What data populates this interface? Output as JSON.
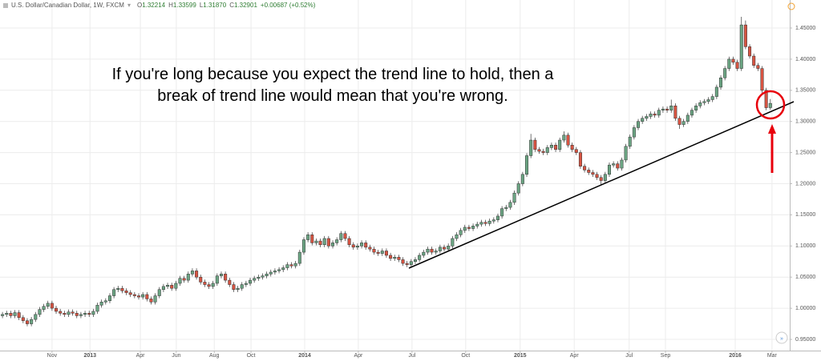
{
  "chart_data": {
    "type": "candlestick",
    "title": "U.S. Dollar/Canadian Dollar, 1W, FXCM",
    "ohlc_header": [
      {
        "label": "O",
        "value": "1.32214"
      },
      {
        "label": "H",
        "value": "1.33599"
      },
      {
        "label": "L",
        "value": "1.31870"
      },
      {
        "label": "C",
        "value": "1.32901"
      }
    ],
    "change": "+0.00687 (+0.52%)",
    "annotation": [
      "If you're long because you expect the trend line to hold, then a",
      "break of trend line would mean that you're wrong."
    ],
    "up_color": "#6ba583",
    "down_color": "#d75442",
    "grid": true,
    "xlim": [
      -0.6,
      190.7
    ],
    "xticks": [
      {
        "value": 12.0,
        "label": "Nov"
      },
      {
        "value": 21.2,
        "label": "2013"
      },
      {
        "value": 33.4,
        "label": "Apr"
      },
      {
        "value": 42.1,
        "label": "Jun"
      },
      {
        "value": 51.3,
        "label": "Aug"
      },
      {
        "value": 60.2,
        "label": "Oct"
      },
      {
        "value": 73.2,
        "label": "2014"
      },
      {
        "value": 86.2,
        "label": "Apr"
      },
      {
        "value": 99.2,
        "label": "Jul"
      },
      {
        "value": 112.2,
        "label": "Oct"
      },
      {
        "value": 125.4,
        "label": "2015"
      },
      {
        "value": 138.5,
        "label": "Apr"
      },
      {
        "value": 151.8,
        "label": "Jul"
      },
      {
        "value": 160.6,
        "label": "Sep"
      },
      {
        "value": 177.5,
        "label": "2016"
      },
      {
        "value": 186.4,
        "label": "Mar"
      }
    ],
    "ylim": [
      0.932,
      1.495
    ],
    "yticks": [
      {
        "value": 0.95,
        "label": "0.95000"
      },
      {
        "value": 1.0,
        "label": "1.00000"
      },
      {
        "value": 1.05,
        "label": "1.05000"
      },
      {
        "value": 1.1,
        "label": "1.10000"
      },
      {
        "value": 1.15,
        "label": "1.15000"
      },
      {
        "value": 1.2,
        "label": "1.20000"
      },
      {
        "value": 1.25,
        "label": "1.25000"
      },
      {
        "value": 1.3,
        "label": "1.30000"
      },
      {
        "value": 1.35,
        "label": "1.35000"
      },
      {
        "value": 1.4,
        "label": "1.40000"
      },
      {
        "value": 1.45,
        "label": "1.45000"
      }
    ],
    "open": [
      0.988,
      0.99,
      0.992,
      0.988,
      0.993,
      0.985,
      0.98,
      0.975,
      0.982,
      0.99,
      0.998,
      1.003,
      1.008,
      1.0,
      0.995,
      0.992,
      0.99,
      0.994,
      0.992,
      0.988,
      0.99,
      0.992,
      0.99,
      0.995,
      1.005,
      1.01,
      1.012,
      1.02,
      1.03,
      1.032,
      1.028,
      1.025,
      1.022,
      1.02,
      1.018,
      1.022,
      1.015,
      1.01,
      1.02,
      1.03,
      1.035,
      1.037,
      1.032,
      1.04,
      1.048,
      1.045,
      1.055,
      1.06,
      1.05,
      1.042,
      1.038,
      1.035,
      1.04,
      1.052,
      1.055,
      1.045,
      1.038,
      1.03,
      1.032,
      1.038,
      1.04,
      1.045,
      1.048,
      1.05,
      1.052,
      1.055,
      1.058,
      1.06,
      1.062,
      1.065,
      1.07,
      1.068,
      1.072,
      1.09,
      1.11,
      1.118,
      1.105,
      1.108,
      1.102,
      1.112,
      1.1,
      1.105,
      1.11,
      1.12,
      1.112,
      1.102,
      1.098,
      1.1,
      1.105,
      1.098,
      1.095,
      1.09,
      1.088,
      1.092,
      1.085,
      1.08,
      1.082,
      1.078,
      1.072,
      1.07,
      1.075,
      1.078,
      1.085,
      1.09,
      1.095,
      1.09,
      1.092,
      1.098,
      1.095,
      1.1,
      1.112,
      1.118,
      1.125,
      1.13,
      1.128,
      1.132,
      1.135,
      1.138,
      1.136,
      1.14,
      1.142,
      1.148,
      1.16,
      1.162,
      1.17,
      1.185,
      1.2,
      1.215,
      1.245,
      1.27,
      1.255,
      1.252,
      1.25,
      1.258,
      1.262,
      1.255,
      1.27,
      1.278,
      1.262,
      1.255,
      1.25,
      1.228,
      1.222,
      1.218,
      1.215,
      1.21,
      1.205,
      1.215,
      1.23,
      1.232,
      1.225,
      1.238,
      1.26,
      1.275,
      1.29,
      1.3,
      1.305,
      1.308,
      1.312,
      1.31,
      1.318,
      1.32,
      1.318,
      1.325,
      1.305,
      1.295,
      1.3,
      1.31,
      1.318,
      1.325,
      1.33,
      1.332,
      1.335,
      1.34,
      1.355,
      1.37,
      1.385,
      1.4,
      1.395,
      1.385,
      1.455,
      1.42,
      1.405,
      1.39,
      1.385,
      1.35,
      1.32214
    ],
    "high": [
      0.994,
      0.996,
      0.996,
      0.997,
      0.997,
      0.989,
      0.984,
      0.986,
      0.994,
      1.002,
      1.007,
      1.012,
      1.012,
      1.004,
      0.999,
      0.996,
      0.998,
      0.998,
      0.996,
      0.994,
      0.996,
      0.996,
      0.999,
      1.009,
      1.014,
      1.016,
      1.024,
      1.034,
      1.036,
      1.036,
      1.032,
      1.029,
      1.026,
      1.024,
      1.026,
      1.026,
      1.019,
      1.024,
      1.034,
      1.039,
      1.041,
      1.041,
      1.044,
      1.052,
      1.052,
      1.059,
      1.064,
      1.064,
      1.054,
      1.046,
      1.042,
      1.044,
      1.056,
      1.059,
      1.059,
      1.049,
      1.042,
      1.036,
      1.042,
      1.044,
      1.049,
      1.052,
      1.054,
      1.056,
      1.059,
      1.062,
      1.064,
      1.066,
      1.069,
      1.074,
      1.074,
      1.076,
      1.094,
      1.114,
      1.122,
      1.122,
      1.112,
      1.112,
      1.116,
      1.116,
      1.109,
      1.114,
      1.124,
      1.124,
      1.116,
      1.106,
      1.104,
      1.109,
      1.109,
      1.102,
      1.099,
      1.094,
      1.096,
      1.096,
      1.089,
      1.086,
      1.086,
      1.082,
      1.076,
      1.079,
      1.082,
      1.089,
      1.094,
      1.099,
      1.099,
      1.096,
      1.102,
      1.102,
      1.104,
      1.116,
      1.122,
      1.129,
      1.134,
      1.134,
      1.136,
      1.139,
      1.142,
      1.142,
      1.144,
      1.146,
      1.152,
      1.164,
      1.166,
      1.174,
      1.189,
      1.204,
      1.219,
      1.249,
      1.28,
      1.274,
      1.259,
      1.256,
      1.262,
      1.266,
      1.266,
      1.274,
      1.284,
      1.282,
      1.266,
      1.259,
      1.254,
      1.232,
      1.226,
      1.222,
      1.219,
      1.214,
      1.219,
      1.234,
      1.236,
      1.236,
      1.242,
      1.264,
      1.279,
      1.294,
      1.304,
      1.309,
      1.312,
      1.316,
      1.316,
      1.322,
      1.324,
      1.324,
      1.335,
      1.329,
      1.309,
      1.304,
      1.314,
      1.322,
      1.329,
      1.334,
      1.336,
      1.339,
      1.344,
      1.359,
      1.374,
      1.389,
      1.404,
      1.404,
      1.399,
      1.468,
      1.462,
      1.424,
      1.409,
      1.394,
      1.389,
      1.354,
      1.33599
    ],
    "low": [
      0.984,
      0.986,
      0.984,
      0.984,
      0.981,
      0.976,
      0.971,
      0.971,
      0.978,
      0.986,
      0.994,
      0.999,
      0.996,
      0.991,
      0.988,
      0.986,
      0.986,
      0.988,
      0.984,
      0.984,
      0.986,
      0.986,
      0.986,
      0.991,
      1.001,
      1.006,
      1.008,
      1.016,
      1.026,
      1.024,
      1.021,
      1.018,
      1.016,
      1.014,
      1.014,
      1.011,
      1.006,
      1.006,
      1.016,
      1.026,
      1.031,
      1.028,
      1.028,
      1.036,
      1.041,
      1.041,
      1.051,
      1.046,
      1.038,
      1.034,
      1.031,
      1.031,
      1.036,
      1.048,
      1.041,
      1.034,
      1.026,
      1.026,
      1.028,
      1.034,
      1.036,
      1.041,
      1.044,
      1.046,
      1.048,
      1.051,
      1.054,
      1.056,
      1.058,
      1.061,
      1.064,
      1.064,
      1.068,
      1.086,
      1.106,
      1.101,
      1.101,
      1.098,
      1.098,
      1.096,
      1.096,
      1.101,
      1.106,
      1.108,
      1.098,
      1.094,
      1.094,
      1.096,
      1.094,
      1.091,
      1.086,
      1.084,
      1.084,
      1.081,
      1.076,
      1.076,
      1.074,
      1.068,
      1.066,
      1.066,
      1.071,
      1.074,
      1.081,
      1.086,
      1.086,
      1.086,
      1.088,
      1.091,
      1.091,
      1.096,
      1.108,
      1.114,
      1.121,
      1.124,
      1.124,
      1.128,
      1.131,
      1.132,
      1.132,
      1.136,
      1.138,
      1.144,
      1.156,
      1.158,
      1.166,
      1.181,
      1.196,
      1.211,
      1.241,
      1.251,
      1.248,
      1.246,
      1.246,
      1.254,
      1.251,
      1.251,
      1.266,
      1.258,
      1.251,
      1.246,
      1.224,
      1.218,
      1.214,
      1.211,
      1.206,
      1.198,
      1.201,
      1.211,
      1.226,
      1.221,
      1.221,
      1.234,
      1.256,
      1.271,
      1.286,
      1.296,
      1.301,
      1.304,
      1.306,
      1.306,
      1.314,
      1.314,
      1.314,
      1.301,
      1.288,
      1.291,
      1.296,
      1.306,
      1.314,
      1.321,
      1.326,
      1.328,
      1.331,
      1.336,
      1.351,
      1.366,
      1.381,
      1.391,
      1.381,
      1.381,
      1.416,
      1.401,
      1.386,
      1.381,
      1.346,
      1.318,
      1.3187
    ],
    "close": [
      0.99,
      0.992,
      0.988,
      0.993,
      0.985,
      0.98,
      0.975,
      0.982,
      0.99,
      0.998,
      1.003,
      1.008,
      1.0,
      0.995,
      0.992,
      0.99,
      0.994,
      0.992,
      0.988,
      0.99,
      0.992,
      0.99,
      0.995,
      1.005,
      1.01,
      1.012,
      1.02,
      1.03,
      1.032,
      1.028,
      1.025,
      1.022,
      1.02,
      1.018,
      1.022,
      1.015,
      1.01,
      1.02,
      1.03,
      1.035,
      1.037,
      1.032,
      1.04,
      1.048,
      1.045,
      1.055,
      1.06,
      1.05,
      1.042,
      1.038,
      1.035,
      1.04,
      1.052,
      1.055,
      1.045,
      1.038,
      1.03,
      1.032,
      1.038,
      1.04,
      1.045,
      1.048,
      1.05,
      1.052,
      1.055,
      1.058,
      1.06,
      1.062,
      1.065,
      1.07,
      1.068,
      1.072,
      1.09,
      1.11,
      1.118,
      1.105,
      1.108,
      1.102,
      1.112,
      1.1,
      1.105,
      1.11,
      1.12,
      1.112,
      1.102,
      1.098,
      1.1,
      1.105,
      1.098,
      1.095,
      1.09,
      1.088,
      1.092,
      1.085,
      1.08,
      1.082,
      1.078,
      1.072,
      1.07,
      1.075,
      1.078,
      1.085,
      1.09,
      1.095,
      1.09,
      1.092,
      1.098,
      1.095,
      1.1,
      1.112,
      1.118,
      1.125,
      1.13,
      1.128,
      1.132,
      1.135,
      1.138,
      1.136,
      1.14,
      1.142,
      1.148,
      1.16,
      1.162,
      1.17,
      1.185,
      1.2,
      1.215,
      1.245,
      1.27,
      1.255,
      1.252,
      1.25,
      1.258,
      1.262,
      1.255,
      1.27,
      1.278,
      1.262,
      1.255,
      1.25,
      1.228,
      1.222,
      1.218,
      1.215,
      1.21,
      1.205,
      1.215,
      1.23,
      1.232,
      1.225,
      1.238,
      1.26,
      1.275,
      1.29,
      1.3,
      1.305,
      1.308,
      1.312,
      1.31,
      1.318,
      1.32,
      1.318,
      1.325,
      1.305,
      1.295,
      1.3,
      1.31,
      1.318,
      1.325,
      1.33,
      1.332,
      1.335,
      1.34,
      1.355,
      1.37,
      1.385,
      1.4,
      1.395,
      1.385,
      1.455,
      1.42,
      1.405,
      1.39,
      1.385,
      1.35,
      1.322,
      1.32901
    ]
  }
}
